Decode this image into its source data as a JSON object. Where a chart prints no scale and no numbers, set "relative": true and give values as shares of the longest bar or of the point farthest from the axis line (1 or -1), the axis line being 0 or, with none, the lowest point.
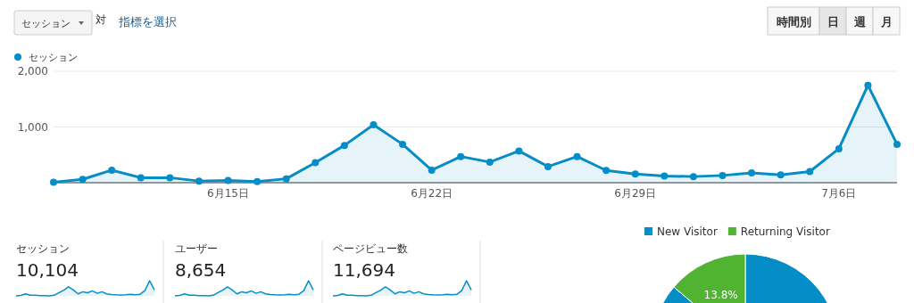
{
  "chart_data": [
    {
      "type": "other",
      "annotations": [
        "セッション",
        "対",
        "指標を選択",
        "時間別",
        "日",
        "週",
        "月"
      ]
    },
    {
      "type": "area",
      "marker": "circle",
      "grid": "y",
      "legend": "top left",
      "categories": [
        null,
        null,
        null,
        null,
        null,
        null,
        "6月15日",
        null,
        null,
        null,
        null,
        null,
        null,
        "6月22日",
        null,
        null,
        null,
        null,
        null,
        null,
        "6月29日",
        null,
        null,
        null,
        null,
        null,
        null,
        "7月6日",
        null,
        null
      ],
      "ylim": [
        0,
        2000
      ],
      "yticks": [
        {
          "value": 1000,
          "label": "1,000"
        },
        {
          "value": 2000,
          "label": "2,000"
        }
      ],
      "series": [
        {
          "name": "セッション",
          "color": "#058dc7",
          "values": [
            10,
            60,
            225,
            90,
            90,
            30,
            40,
            20,
            70,
            360,
            670,
            1040,
            690,
            225,
            470,
            370,
            570,
            290,
            470,
            220,
            155,
            120,
            110,
            130,
            175,
            140,
            200,
            610,
            1750,
            690
          ]
        }
      ]
    },
    {
      "type": "line",
      "relative": true,
      "title": "セッション",
      "annotations": [
        "10,104"
      ],
      "categories": [
        null,
        null,
        null,
        null,
        null,
        null,
        null,
        null,
        null,
        null,
        null,
        null,
        null,
        null,
        null,
        null,
        null,
        null,
        null,
        null,
        null,
        null,
        null,
        null,
        null,
        null,
        null,
        null,
        null,
        null
      ],
      "series": [
        {
          "color": "#058dc7",
          "values": [
            0,
            0.03,
            0.13,
            0.05,
            0.05,
            0.02,
            0.02,
            0,
            0.04,
            0.21,
            0.38,
            0.59,
            0.39,
            0.13,
            0.27,
            0.21,
            0.33,
            0.17,
            0.27,
            0.13,
            0.09,
            0.07,
            0.06,
            0.07,
            0.1,
            0.08,
            0.11,
            0.35,
            1,
            0.39
          ]
        }
      ]
    },
    {
      "type": "line",
      "relative": true,
      "title": "ユーザー",
      "annotations": [
        "8,654"
      ],
      "categories": [
        null,
        null,
        null,
        null,
        null,
        null,
        null,
        null,
        null,
        null,
        null,
        null,
        null,
        null,
        null,
        null,
        null,
        null,
        null,
        null,
        null,
        null,
        null,
        null,
        null,
        null,
        null,
        null,
        null,
        null
      ],
      "series": [
        {
          "color": "#058dc7",
          "values": [
            0,
            0.03,
            0.13,
            0.05,
            0.05,
            0.02,
            0.02,
            0,
            0.04,
            0.21,
            0.38,
            0.59,
            0.39,
            0.13,
            0.27,
            0.21,
            0.33,
            0.17,
            0.27,
            0.13,
            0.09,
            0.07,
            0.06,
            0.07,
            0.1,
            0.08,
            0.11,
            0.35,
            1,
            0.39
          ]
        }
      ]
    },
    {
      "type": "line",
      "relative": true,
      "title": "ページビュー数",
      "annotations": [
        "11,694"
      ],
      "categories": [
        null,
        null,
        null,
        null,
        null,
        null,
        null,
        null,
        null,
        null,
        null,
        null,
        null,
        null,
        null,
        null,
        null,
        null,
        null,
        null,
        null,
        null,
        null,
        null,
        null,
        null,
        null,
        null,
        null,
        null
      ],
      "series": [
        {
          "color": "#058dc7",
          "values": [
            0,
            0.03,
            0.13,
            0.05,
            0.05,
            0.02,
            0.02,
            0,
            0.04,
            0.21,
            0.38,
            0.59,
            0.39,
            0.13,
            0.27,
            0.21,
            0.33,
            0.17,
            0.27,
            0.13,
            0.09,
            0.07,
            0.06,
            0.07,
            0.1,
            0.08,
            0.11,
            0.35,
            1,
            0.39
          ]
        }
      ]
    },
    {
      "type": "pie",
      "legend": "top",
      "categories": [
        "New Visitor",
        "Returning Visitor"
      ],
      "values": [
        86.2,
        13.8
      ],
      "colors": [
        "#058dc7",
        "#50b432"
      ],
      "value_labels": [
        null,
        "13.8%"
      ]
    }
  ]
}
